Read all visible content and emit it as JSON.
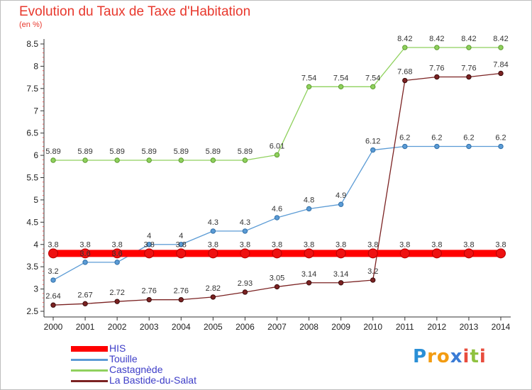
{
  "chart_data": {
    "type": "line",
    "title": "Evolution du Taux de Taxe d'Habitation",
    "subtitle": "(en %)",
    "categories": [
      "2000",
      "2001",
      "2002",
      "2003",
      "2004",
      "2005",
      "2006",
      "2007",
      "2008",
      "2009",
      "2010",
      "2011",
      "2012",
      "2013",
      "2014"
    ],
    "y_ticks": [
      "2.5",
      "3",
      "3.5",
      "4",
      "4.5",
      "5",
      "5.5",
      "6",
      "6.5",
      "7",
      "7.5",
      "8",
      "8.5"
    ],
    "ylim": [
      2.5,
      8.5
    ],
    "grid": false,
    "legend_position": "bottom-left",
    "series": [
      {
        "name": "HIS",
        "color": "#ff0000",
        "values": [
          3.8,
          3.8,
          3.8,
          3.8,
          3.8,
          3.8,
          3.8,
          3.8,
          3.8,
          3.8,
          3.8,
          3.8,
          3.8,
          3.8,
          3.8
        ],
        "labels": [
          "3.8",
          "3.8",
          "3.8",
          "3.8",
          "3.8",
          "3.8",
          "3.8",
          "3.8",
          "3.8",
          "3.8",
          "3.8",
          "3.8",
          "3.8",
          "3.8",
          "3.8"
        ]
      },
      {
        "name": "Touille",
        "color": "#5b9bd5",
        "values": [
          3.2,
          3.6,
          3.6,
          4.0,
          4.0,
          4.3,
          4.3,
          4.6,
          4.8,
          4.9,
          6.12,
          6.2,
          6.2,
          6.2,
          6.2
        ],
        "labels": [
          "3.2",
          "3.6",
          "3.6",
          "4",
          "4",
          "4.3",
          "4.3",
          "4.6",
          "4.8",
          "4.9",
          "6.12",
          "6.2",
          "6.2",
          "6.2",
          "6.2"
        ]
      },
      {
        "name": "Castagnède",
        "color": "#8fd15d",
        "values": [
          5.89,
          5.89,
          5.89,
          5.89,
          5.89,
          5.89,
          5.89,
          6.01,
          7.54,
          7.54,
          7.54,
          8.42,
          8.42,
          8.42,
          8.42
        ],
        "labels": [
          "5.89",
          "5.89",
          "5.89",
          "5.89",
          "5.89",
          "5.89",
          "5.89",
          "6.01",
          "7.54",
          "7.54",
          "7.54",
          "8.42",
          "8.42",
          "8.42",
          "8.42"
        ]
      },
      {
        "name": "La Bastide-du-Salat",
        "color": "#7b2222",
        "values": [
          2.64,
          2.67,
          2.72,
          2.76,
          2.76,
          2.82,
          2.93,
          3.05,
          3.14,
          3.14,
          3.2,
          7.68,
          7.76,
          7.76,
          7.84
        ],
        "labels": [
          "2.64",
          "2.67",
          "2.72",
          "2.76",
          "2.76",
          "2.82",
          "2.93",
          "3.05",
          "3.14",
          "3.14",
          "3.2",
          "7.68",
          "7.76",
          "7.76",
          "7.84"
        ]
      }
    ]
  },
  "logo": {
    "letters": [
      "P",
      "r",
      "o",
      "x",
      "i",
      "t",
      "i"
    ],
    "colors": [
      "#2a8fd6",
      "#f39c12",
      "#f39c12",
      "#3a7bd5",
      "#e84c3d",
      "#8fc23f",
      "#e84c3d"
    ]
  }
}
